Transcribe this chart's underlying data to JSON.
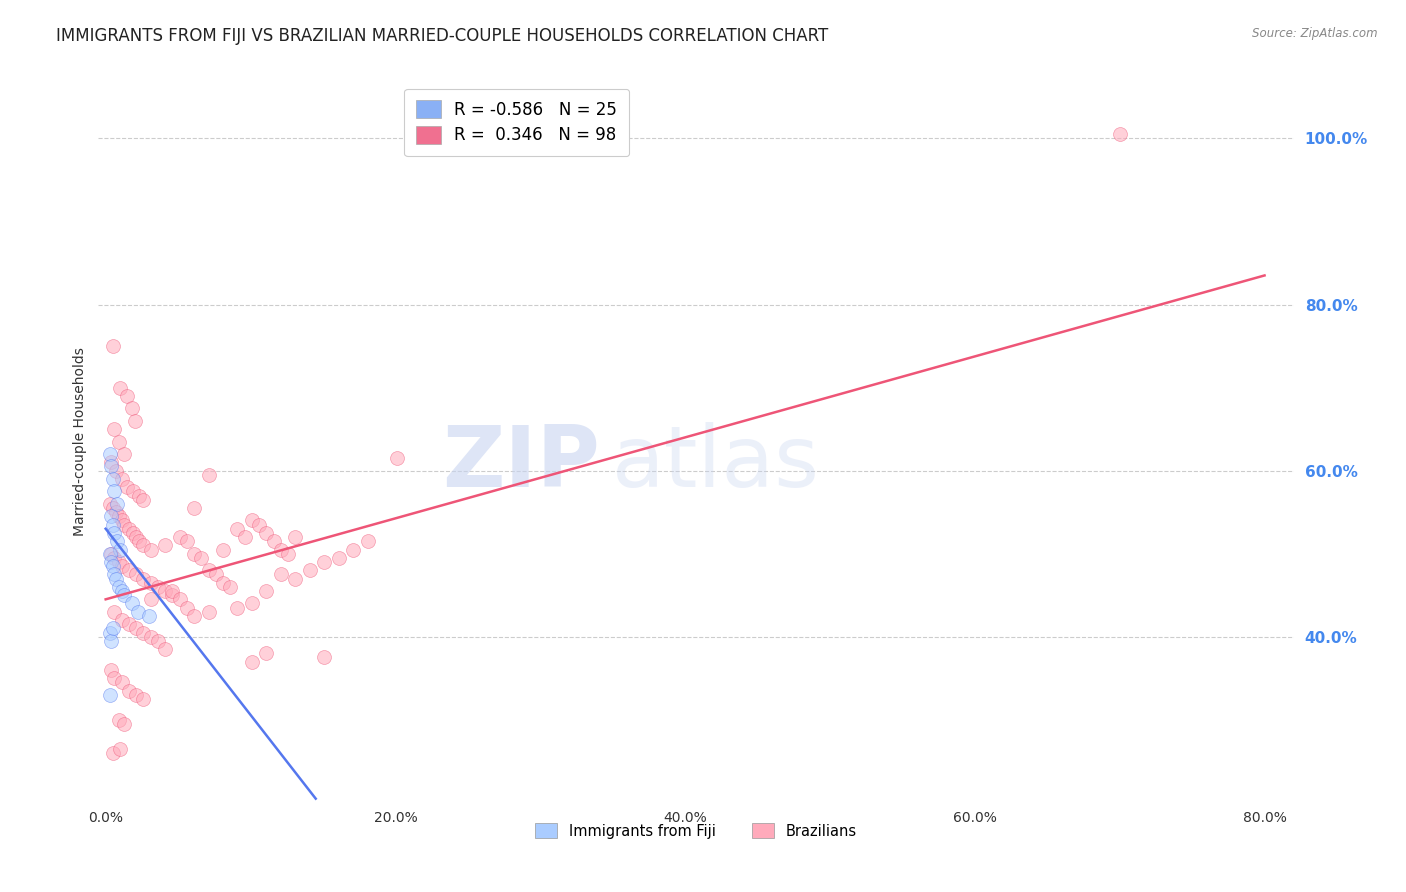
{
  "title": "IMMIGRANTS FROM FIJI VS BRAZILIAN MARRIED-COUPLE HOUSEHOLDS CORRELATION CHART",
  "source": "Source: ZipAtlas.com",
  "ylabel_left": "Married-couple Households",
  "ylabel_right_ticks": [
    40.0,
    60.0,
    80.0,
    100.0
  ],
  "xaxis_ticks": [
    0.0,
    20.0,
    40.0,
    60.0,
    80.0
  ],
  "xmin": -0.5,
  "xmax": 82.0,
  "ymin": 20.0,
  "ymax": 107.0,
  "watermark_zip": "ZIP",
  "watermark_atlas": "atlas",
  "legend_entries": [
    {
      "label": "R = -0.586   N = 25",
      "color": "#8ab0f5"
    },
    {
      "label": "R =  0.346   N = 98",
      "color": "#f07090"
    }
  ],
  "legend_bottom": [
    {
      "label": "Immigrants from Fiji",
      "color": "#aaccff"
    },
    {
      "label": "Brazilians",
      "color": "#ffaabb"
    }
  ],
  "fiji_dots": [
    [
      0.3,
      62.0
    ],
    [
      0.4,
      60.5
    ],
    [
      0.5,
      59.0
    ],
    [
      0.6,
      57.5
    ],
    [
      0.8,
      56.0
    ],
    [
      0.4,
      54.5
    ],
    [
      0.5,
      53.5
    ],
    [
      0.6,
      52.5
    ],
    [
      0.8,
      51.5
    ],
    [
      1.0,
      50.5
    ],
    [
      0.3,
      50.0
    ],
    [
      0.4,
      49.0
    ],
    [
      0.5,
      48.5
    ],
    [
      0.6,
      47.5
    ],
    [
      0.7,
      47.0
    ],
    [
      0.9,
      46.0
    ],
    [
      1.1,
      45.5
    ],
    [
      1.3,
      45.0
    ],
    [
      1.8,
      44.0
    ],
    [
      2.2,
      43.0
    ],
    [
      0.3,
      40.5
    ],
    [
      0.4,
      39.5
    ],
    [
      0.5,
      41.0
    ],
    [
      3.0,
      42.5
    ],
    [
      0.3,
      33.0
    ]
  ],
  "brazil_dots": [
    [
      0.5,
      75.0
    ],
    [
      1.0,
      70.0
    ],
    [
      1.5,
      69.0
    ],
    [
      1.8,
      67.5
    ],
    [
      2.0,
      66.0
    ],
    [
      0.6,
      65.0
    ],
    [
      0.9,
      63.5
    ],
    [
      1.3,
      62.0
    ],
    [
      0.4,
      61.0
    ],
    [
      0.7,
      60.0
    ],
    [
      1.1,
      59.0
    ],
    [
      1.5,
      58.0
    ],
    [
      1.9,
      57.5
    ],
    [
      2.3,
      57.0
    ],
    [
      2.6,
      56.5
    ],
    [
      0.3,
      56.0
    ],
    [
      0.5,
      55.5
    ],
    [
      0.7,
      55.0
    ],
    [
      0.9,
      54.5
    ],
    [
      1.1,
      54.0
    ],
    [
      1.3,
      53.5
    ],
    [
      1.6,
      53.0
    ],
    [
      1.9,
      52.5
    ],
    [
      2.1,
      52.0
    ],
    [
      2.3,
      51.5
    ],
    [
      2.6,
      51.0
    ],
    [
      3.1,
      50.5
    ],
    [
      0.4,
      50.0
    ],
    [
      0.6,
      49.5
    ],
    [
      0.9,
      49.0
    ],
    [
      1.1,
      48.5
    ],
    [
      1.6,
      48.0
    ],
    [
      2.1,
      47.5
    ],
    [
      2.6,
      47.0
    ],
    [
      3.1,
      46.5
    ],
    [
      3.6,
      46.0
    ],
    [
      4.1,
      45.5
    ],
    [
      4.6,
      45.0
    ],
    [
      5.1,
      52.0
    ],
    [
      5.6,
      51.5
    ],
    [
      6.1,
      50.0
    ],
    [
      6.6,
      49.5
    ],
    [
      7.1,
      48.0
    ],
    [
      7.6,
      47.5
    ],
    [
      8.1,
      46.5
    ],
    [
      8.6,
      46.0
    ],
    [
      9.1,
      53.0
    ],
    [
      9.6,
      52.0
    ],
    [
      10.1,
      54.0
    ],
    [
      10.6,
      53.5
    ],
    [
      11.1,
      52.5
    ],
    [
      11.6,
      51.5
    ],
    [
      12.1,
      50.5
    ],
    [
      12.6,
      50.0
    ],
    [
      13.1,
      52.0
    ],
    [
      0.6,
      43.0
    ],
    [
      1.1,
      42.0
    ],
    [
      1.6,
      41.5
    ],
    [
      2.1,
      41.0
    ],
    [
      2.6,
      40.5
    ],
    [
      3.1,
      40.0
    ],
    [
      3.6,
      39.5
    ],
    [
      4.1,
      38.5
    ],
    [
      4.6,
      45.5
    ],
    [
      5.1,
      44.5
    ],
    [
      5.6,
      43.5
    ],
    [
      6.1,
      42.5
    ],
    [
      7.1,
      43.0
    ],
    [
      8.1,
      50.5
    ],
    [
      9.1,
      43.5
    ],
    [
      10.1,
      44.0
    ],
    [
      11.1,
      45.5
    ],
    [
      12.1,
      47.5
    ],
    [
      13.1,
      47.0
    ],
    [
      14.1,
      48.0
    ],
    [
      15.1,
      49.0
    ],
    [
      16.1,
      49.5
    ],
    [
      17.1,
      50.5
    ],
    [
      18.1,
      51.5
    ],
    [
      20.1,
      61.5
    ],
    [
      0.4,
      36.0
    ],
    [
      0.6,
      35.0
    ],
    [
      1.1,
      34.5
    ],
    [
      1.6,
      33.5
    ],
    [
      2.1,
      33.0
    ],
    [
      2.6,
      32.5
    ],
    [
      10.1,
      37.0
    ],
    [
      11.1,
      38.0
    ],
    [
      15.1,
      37.5
    ],
    [
      0.9,
      30.0
    ],
    [
      1.3,
      29.5
    ],
    [
      70.0,
      100.5
    ],
    [
      3.1,
      44.5
    ],
    [
      4.1,
      51.0
    ],
    [
      6.1,
      55.5
    ],
    [
      7.1,
      59.5
    ],
    [
      0.5,
      26.0
    ],
    [
      1.0,
      26.5
    ]
  ],
  "fiji_line": {
    "x0": 0.0,
    "y0": 53.0,
    "x1": 14.5,
    "y1": 20.5
  },
  "brazil_line": {
    "x0": 0.0,
    "y0": 44.5,
    "x1": 80.0,
    "y1": 83.5
  },
  "blue_color": "#5577ee",
  "pink_color": "#ee5577",
  "blue_dot_facecolor": "#aaccff",
  "pink_dot_facecolor": "#ffaabb",
  "dot_size": 100,
  "dot_alpha": 0.55,
  "dot_edge_width": 0.5,
  "grid_color": "#cccccc",
  "grid_style": "--",
  "background_color": "#ffffff",
  "title_fontsize": 12,
  "axis_label_fontsize": 10,
  "tick_fontsize": 10,
  "right_tick_color": "#4488ee"
}
